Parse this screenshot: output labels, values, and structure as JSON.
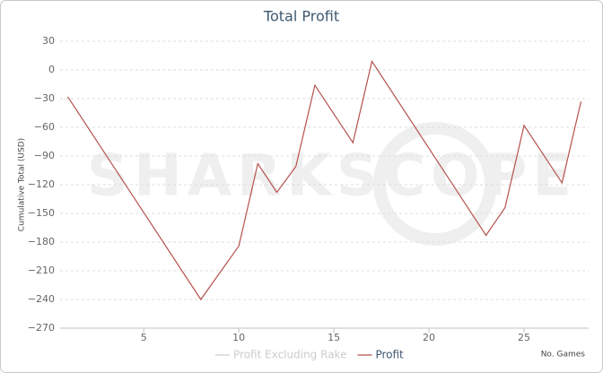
{
  "chart_data": {
    "type": "line",
    "title": "Total Profit",
    "watermark": "SHARKSCOPE",
    "x_label": "No. Games",
    "y_label": "Cumulative Total (USD)",
    "x": [
      1,
      8,
      10,
      11,
      12,
      13,
      14,
      16,
      17,
      23,
      24,
      25,
      27,
      28
    ],
    "series": [
      {
        "name": "Profit Excluding Rake",
        "color": "#cccccc",
        "values": [
          null,
          null,
          null,
          null,
          null,
          null,
          null,
          null,
          null,
          null,
          null,
          null,
          null,
          null
        ]
      },
      {
        "name": "Profit",
        "color": "#b5524c",
        "values": [
          -28,
          -240,
          -184,
          -98,
          -128,
          -101,
          -16,
          -76,
          9,
          -173,
          -144,
          -58,
          -118,
          -33
        ]
      }
    ],
    "xlim": [
      0.6,
      28.4
    ],
    "xticks": [
      5,
      10,
      15,
      20,
      25
    ],
    "ylim": [
      -270,
      30
    ],
    "yticks": [
      30,
      0,
      {
        "value": -30,
        "label": "−30"
      },
      {
        "value": -60,
        "label": "−60"
      },
      {
        "value": -90,
        "label": "−90"
      },
      {
        "value": -120,
        "label": "−120"
      },
      {
        "value": -150,
        "label": "−150"
      },
      {
        "value": -180,
        "label": "−180"
      },
      {
        "value": -210,
        "label": "−210"
      },
      {
        "value": -240,
        "label": "−240"
      },
      {
        "value": -270,
        "label": "−270"
      }
    ],
    "grid": true
  }
}
